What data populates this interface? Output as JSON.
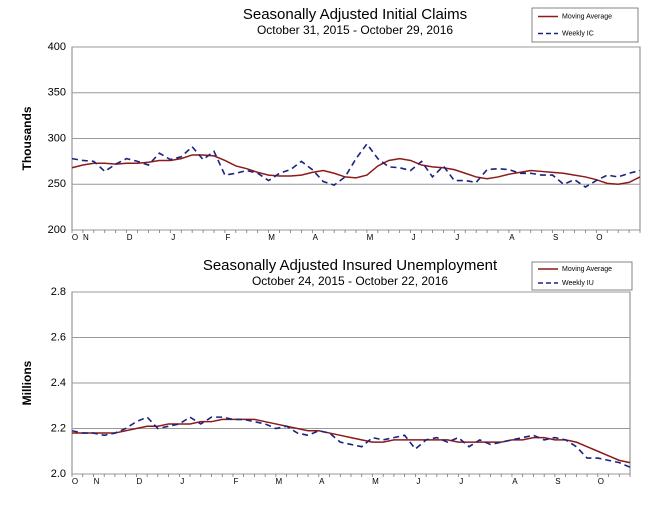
{
  "chart_data": [
    {
      "type": "line",
      "title": "Seasonally Adjusted Initial Claims",
      "subtitle": "October 31, 2015  -  October 29, 2016",
      "ylabel": "Thousands",
      "categories": [
        "O",
        "N",
        null,
        null,
        null,
        "D",
        null,
        null,
        null,
        "J",
        null,
        null,
        null,
        null,
        "F",
        null,
        null,
        null,
        "M",
        null,
        null,
        null,
        "A",
        null,
        null,
        null,
        null,
        "M",
        null,
        null,
        null,
        "J",
        null,
        null,
        null,
        "J",
        null,
        null,
        null,
        null,
        "A",
        null,
        null,
        null,
        "S",
        null,
        null,
        null,
        "O",
        null,
        null,
        null,
        null
      ],
      "series": [
        {
          "name": "Moving Average",
          "color": "#8b1a1a",
          "style": "solid",
          "values": [
            268,
            271,
            273,
            273,
            272,
            273,
            273,
            274,
            276,
            276,
            278,
            282,
            282,
            281,
            276,
            270,
            267,
            263,
            260,
            259,
            259,
            260,
            263,
            265,
            262,
            258,
            257,
            260,
            270,
            276,
            278,
            276,
            271,
            269,
            268,
            266,
            262,
            258,
            256,
            258,
            261,
            263,
            265,
            264,
            263,
            262,
            260,
            258,
            255,
            251,
            250,
            252,
            258
          ]
        },
        {
          "name": "Weekly IC",
          "color": "#1a237e",
          "style": "dashed",
          "values": [
            278,
            276,
            275,
            264,
            272,
            278,
            275,
            271,
            284,
            277,
            280,
            291,
            277,
            286,
            260,
            262,
            265,
            262,
            254,
            262,
            266,
            275,
            266,
            253,
            249,
            258,
            278,
            294,
            278,
            269,
            268,
            265,
            275,
            258,
            270,
            254,
            254,
            252,
            266,
            267,
            266,
            262,
            262,
            260,
            260,
            250,
            255,
            247,
            254,
            260,
            258,
            262,
            265
          ]
        }
      ],
      "ylim": [
        200,
        400
      ],
      "yticks": [
        200,
        250,
        300,
        350,
        400
      ],
      "grid": true,
      "legend": "upper right"
    },
    {
      "type": "line",
      "title": "Seasonally Adjusted Insured Unemployment",
      "subtitle": "October 24, 2015  -  October 22, 2016",
      "ylabel": "Millions",
      "categories": [
        "O",
        null,
        "N",
        null,
        null,
        null,
        "D",
        null,
        null,
        null,
        "J",
        null,
        null,
        null,
        null,
        "F",
        null,
        null,
        null,
        "M",
        null,
        null,
        null,
        "A",
        null,
        null,
        null,
        null,
        "M",
        null,
        null,
        null,
        "J",
        null,
        null,
        null,
        "J",
        null,
        null,
        null,
        null,
        "A",
        null,
        null,
        null,
        "S",
        null,
        null,
        null,
        "O",
        null,
        null,
        null
      ],
      "series": [
        {
          "name": "Moving Average",
          "color": "#8b1a1a",
          "style": "solid",
          "values": [
            2.18,
            2.18,
            2.18,
            2.18,
            2.18,
            2.19,
            2.2,
            2.21,
            2.21,
            2.22,
            2.22,
            2.22,
            2.23,
            2.23,
            2.24,
            2.24,
            2.24,
            2.24,
            2.23,
            2.22,
            2.21,
            2.2,
            2.19,
            2.19,
            2.18,
            2.17,
            2.16,
            2.15,
            2.14,
            2.14,
            2.15,
            2.15,
            2.15,
            2.15,
            2.15,
            2.15,
            2.14,
            2.14,
            2.14,
            2.14,
            2.14,
            2.15,
            2.15,
            2.16,
            2.16,
            2.15,
            2.15,
            2.14,
            2.12,
            2.1,
            2.08,
            2.06,
            2.05
          ]
        },
        {
          "name": "Weekly IU",
          "color": "#1a237e",
          "style": "dashed",
          "values": [
            2.19,
            2.18,
            2.18,
            2.17,
            2.18,
            2.2,
            2.23,
            2.25,
            2.2,
            2.21,
            2.22,
            2.25,
            2.22,
            2.25,
            2.25,
            2.24,
            2.24,
            2.23,
            2.22,
            2.2,
            2.21,
            2.18,
            2.17,
            2.19,
            2.18,
            2.14,
            2.13,
            2.12,
            2.16,
            2.15,
            2.16,
            2.17,
            2.11,
            2.15,
            2.16,
            2.14,
            2.16,
            2.12,
            2.15,
            2.13,
            2.14,
            2.15,
            2.16,
            2.17,
            2.15,
            2.16,
            2.15,
            2.12,
            2.07,
            2.07,
            2.06,
            2.05,
            2.03
          ]
        }
      ],
      "ylim": [
        2.0,
        2.8
      ],
      "yticks": [
        {
          "value": 2.0,
          "label": "2.0"
        },
        2.2,
        2.4,
        2.6,
        2.8
      ],
      "grid": true,
      "legend": "upper right"
    }
  ]
}
